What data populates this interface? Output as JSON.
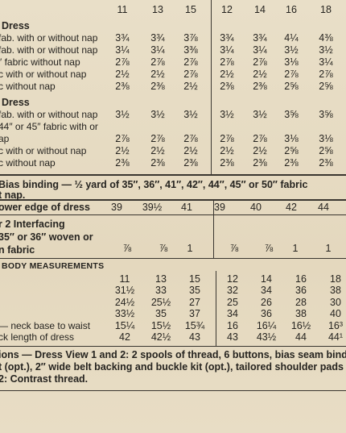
{
  "header": {
    "sizes": [
      "11",
      "13",
      "15",
      "12",
      "14",
      "16",
      "18"
    ]
  },
  "dress_1": {
    "title": "Dress",
    "rows": [
      {
        "label": "fab. with or without nap",
        "values": [
          "3¾",
          "3¾",
          "3⅞",
          "3¾",
          "3¾",
          "4¼",
          "4⅜"
        ]
      },
      {
        "label": "fab. with or without nap",
        "values": [
          "3¼",
          "3¼",
          "3⅜",
          "3¼",
          "3¼",
          "3½",
          "3½"
        ]
      },
      {
        "label": "″ fabric without nap",
        "values": [
          "2⅞",
          "2⅞",
          "2⅞",
          "2⅞",
          "2⅞",
          "3⅛",
          "3¼"
        ]
      },
      {
        "label": "c with or without nap",
        "values": [
          "2½",
          "2½",
          "2⅞",
          "2½",
          "2½",
          "2⅞",
          "2⅞"
        ]
      },
      {
        "label": "c without nap",
        "values": [
          "2⅜",
          "2⅜",
          "2½",
          "2⅜",
          "2⅜",
          "2⅝",
          "2⅝"
        ]
      }
    ]
  },
  "dress_2": {
    "title": "Dress",
    "rows": [
      {
        "label": "fab. with or without nap",
        "values": [
          "3½",
          "3½",
          "3½",
          "3½",
          "3½",
          "3⅝",
          "3⅝"
        ]
      },
      {
        "label": "44″ or 45″ fabric with or"
      },
      {
        "label": "ap",
        "values": [
          "2⅞",
          "2⅞",
          "2⅞",
          "2⅞",
          "2⅞",
          "3⅛",
          "3⅛"
        ]
      },
      {
        "label": "c with or without nap",
        "values": [
          "2½",
          "2½",
          "2½",
          "2½",
          "2½",
          "2⅝",
          "2⅝"
        ]
      },
      {
        "label": "c without nap",
        "values": [
          "2⅜",
          "2⅜",
          "2⅜",
          "2⅜",
          "2⅜",
          "2⅜",
          "2⅜"
        ]
      }
    ]
  },
  "bias_binding": [
    "Bias binding — ½ yard of 35″, 36″, 41″, 42″, 44″, 45″ or 50″ fabric",
    "t nap."
  ],
  "lower_edge": {
    "label": "ower edge of dress",
    "values": [
      "39",
      "39½",
      "41",
      "39",
      "40",
      "42",
      "44"
    ]
  },
  "interfacing": {
    "lines": [
      "r 2   Interfacing",
      "35″ or 36″ woven or",
      "n fabric"
    ],
    "values": [
      "⅞",
      "⅞",
      "1",
      "⅞",
      "⅞",
      "1",
      "1"
    ]
  },
  "body_measurements": {
    "title": "BODY MEASUREMENTS",
    "sizes": [
      "11",
      "13",
      "15",
      "12",
      "14",
      "16",
      "18"
    ],
    "rows": [
      {
        "values": [
          "31½",
          "33",
          "35",
          "32",
          "34",
          "36",
          "38"
        ]
      },
      {
        "values": [
          "24½",
          "25½",
          "27",
          "25",
          "26",
          "28",
          "30"
        ]
      },
      {
        "values": [
          "33½",
          "35",
          "37",
          "34",
          "36",
          "38",
          "40"
        ]
      },
      {
        "label": "— neck base to waist",
        "values": [
          "15¼",
          "15½",
          "15¾",
          "16",
          "16¼",
          "16½",
          "16³"
        ]
      },
      {
        "label": "ck length of dress",
        "values": [
          "42",
          "42½",
          "43",
          "43",
          "43½",
          "44",
          "44¹"
        ]
      }
    ]
  },
  "notions": [
    "ions — Dress View 1 and 2: 2 spools of thread, 6 buttons, bias seam bindin",
    "t (opt.), 2″ wide belt backing and buckle kit (opt.), tailored shoulder pads",
    "2: Contrast thread."
  ]
}
